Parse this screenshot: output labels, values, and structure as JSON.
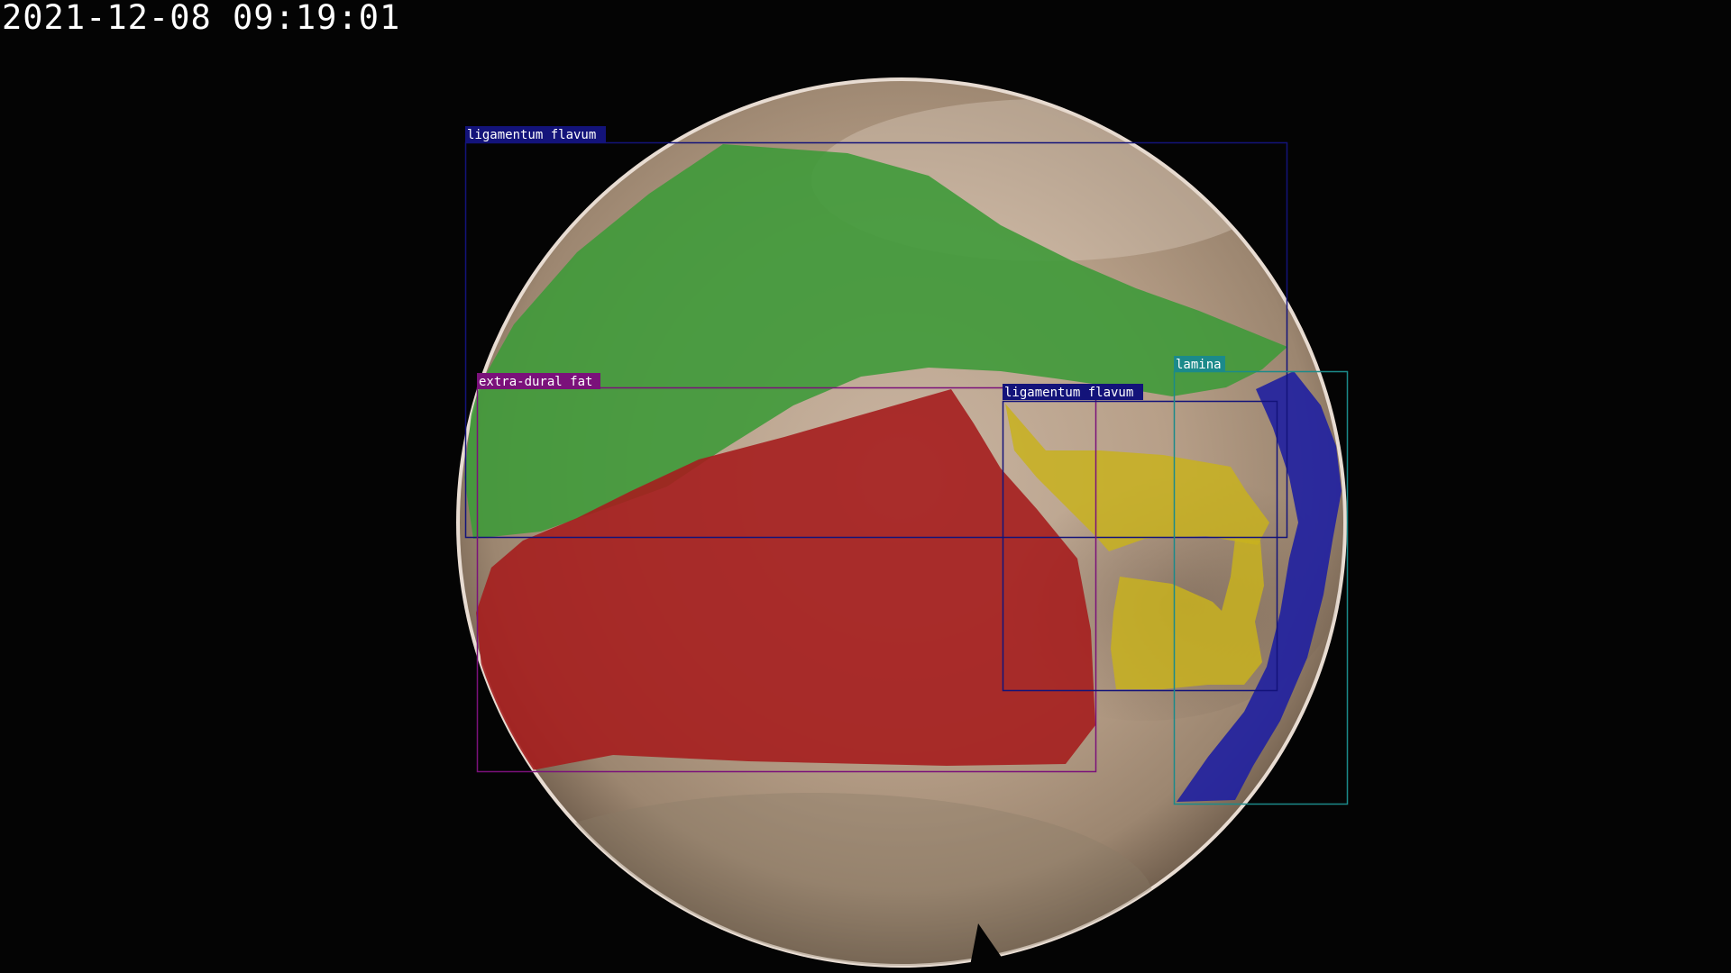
{
  "timestamp": "2021-12-08 09:19:01",
  "colors": {
    "ligamentum_flavum_box": "#13137a",
    "extra_dural_fat_box": "#7a117a",
    "lamina_box": "#1b8a8a",
    "green_mask": "#3f9a3a",
    "red_mask": "#a51e1e",
    "yellow_mask": "#c8b21e",
    "blue_mask": "#2222a0",
    "tissue": "#b8a08a"
  },
  "annotations": [
    {
      "label": "ligamentum flavum",
      "mask": "green-mask"
    },
    {
      "label": "extra-dural fat",
      "mask": "red-mask"
    },
    {
      "label": "ligamentum flavum",
      "mask": "yellow-mask"
    },
    {
      "label": "lamina",
      "mask": "blue-mask"
    }
  ]
}
